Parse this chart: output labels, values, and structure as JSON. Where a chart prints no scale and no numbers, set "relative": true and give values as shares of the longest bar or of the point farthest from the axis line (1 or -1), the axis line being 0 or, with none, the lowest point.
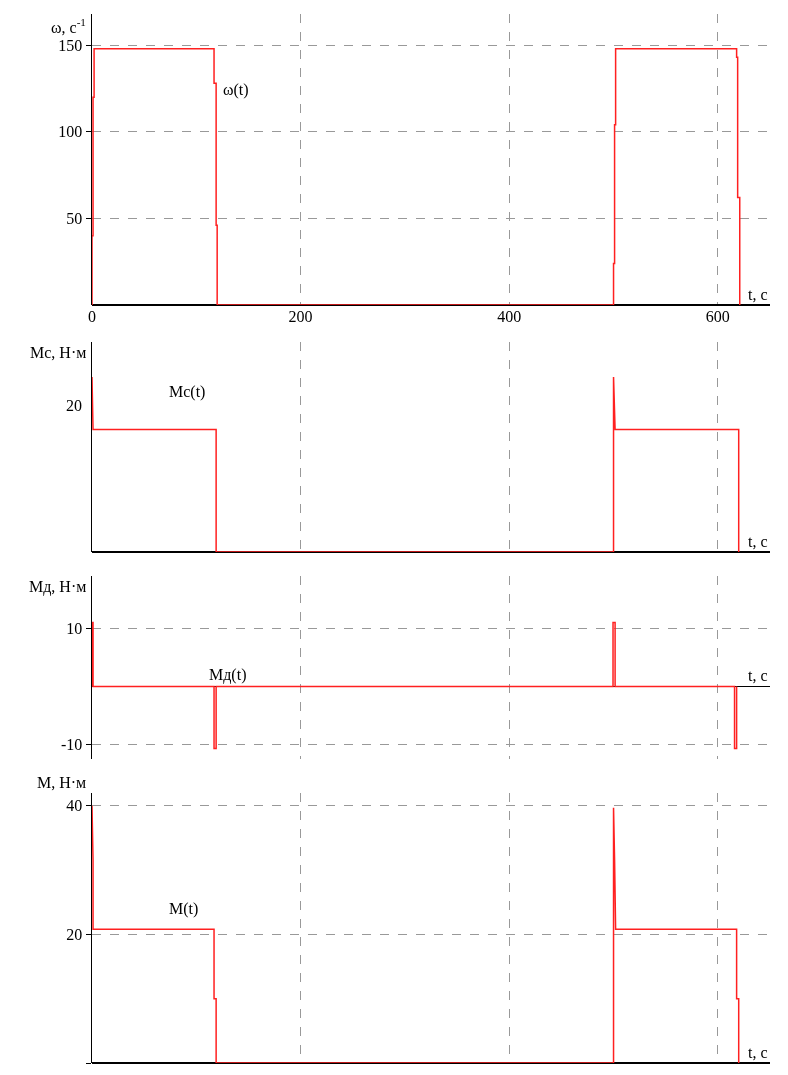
{
  "chart_data": [
    {
      "type": "line",
      "ylabel": "ω, с$^{-1}$",
      "xlabel": "t, с",
      "xlim": [
        0,
        650
      ],
      "xticks": [
        0,
        200,
        400,
        600
      ],
      "ylim": [
        0,
        168
      ],
      "yticks": [
        50,
        100,
        150
      ],
      "grid": true,
      "legend": false,
      "line_style": "solid",
      "marker": "none",
      "series": [
        {
          "color": "#ff2020",
          "x": [
            0,
            0,
            1,
            1,
            2,
            2,
            117,
            117,
            119,
            119,
            120,
            120,
            500,
            500,
            501,
            501,
            502,
            502,
            618,
            618,
            619,
            619,
            621,
            621
          ],
          "values": [
            0,
            40,
            40,
            120,
            120,
            148,
            148,
            128,
            128,
            46,
            46,
            0,
            0,
            24,
            24,
            104,
            104,
            148,
            148,
            143,
            143,
            62,
            62,
            0
          ]
        }
      ],
      "annotations": [
        "ω(t)"
      ]
    },
    {
      "type": "line",
      "relative": true,
      "ylabel": "Mс, Н·м",
      "xlabel": "t, с",
      "xlim": [
        0,
        650
      ],
      "xticks": [
        0,
        200,
        400,
        600
      ],
      "grid": "x",
      "legend": false,
      "tick_labels": false,
      "line_style": "solid",
      "marker": "none",
      "series": [
        {
          "color": "#ff2020",
          "x": [
            0,
            1,
            119,
            119,
            500,
            500,
            501.5,
            620,
            620
          ],
          "values": [
            1,
            0.7,
            0.7,
            0,
            0,
            1,
            0.7,
            0.7,
            0
          ]
        }
      ],
      "annotations": [
        "Mс(t)",
        "20"
      ]
    },
    {
      "type": "line",
      "ylabel": "Mд, Н·м",
      "xlabel": "t, с",
      "xlim": [
        0,
        650
      ],
      "xticks": [
        0,
        200,
        400,
        600
      ],
      "ylim": [
        -12.5,
        19
      ],
      "yticks": [
        10,
        -10
      ],
      "grid": true,
      "legend": false,
      "tick_labels": "y",
      "line_style": "solid",
      "marker": "none",
      "series": [
        {
          "color": "#ff2020",
          "x": [
            0,
            0,
            1,
            1,
            117,
            117,
            119,
            119,
            499.5,
            499.5,
            501.5,
            501.5,
            616,
            616,
            618,
            618
          ],
          "values": [
            0,
            11,
            11,
            0,
            0,
            -10.7,
            -10.7,
            0,
            0,
            11,
            11,
            0,
            0,
            -10.7,
            -10.7,
            0
          ]
        }
      ],
      "annotations": [
        "Mд(t)"
      ]
    },
    {
      "type": "line",
      "ylabel": "M, Н·м",
      "xlabel": "t, с",
      "xlim": [
        0,
        650
      ],
      "xticks": [
        0,
        200,
        400,
        600
      ],
      "ylim": [
        0,
        42
      ],
      "yticks": [
        {
          "value": 0,
          "label": null
        },
        20,
        40
      ],
      "grid": true,
      "legend": false,
      "tick_labels": "y",
      "line_style": "solid",
      "marker": "none",
      "series": [
        {
          "color": "#ff2020",
          "x": [
            0,
            1,
            1,
            117,
            117,
            119,
            119,
            500
          ],
          "values": [
            40,
            31.6,
            20.8,
            20.8,
            10,
            10,
            0,
            0
          ]
        },
        {
          "color": "#ff2020",
          "x": [
            500,
            500,
            501,
            502,
            618,
            618,
            620,
            620
          ],
          "values": [
            0,
            39.7,
            31.6,
            20.8,
            20.8,
            10,
            10,
            0
          ]
        }
      ],
      "annotations": [
        "M(t)"
      ]
    }
  ]
}
